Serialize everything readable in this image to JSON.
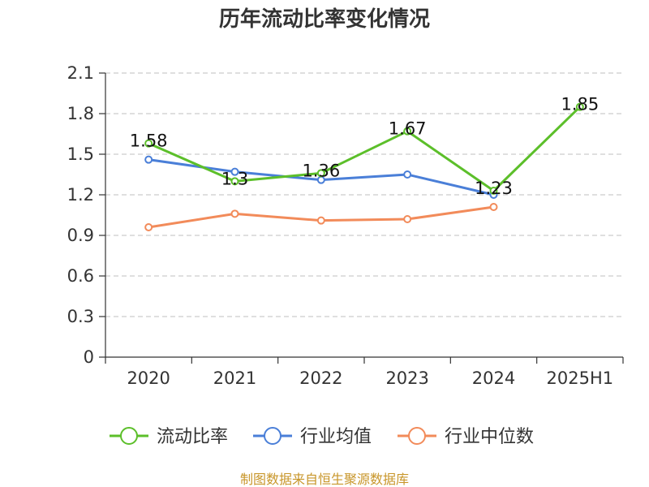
{
  "chart_data": {
    "type": "line",
    "title": "历年流动比率变化情况",
    "categories": [
      "2020",
      "2021",
      "2022",
      "2023",
      "2024",
      "2025H1"
    ],
    "ylim": [
      0,
      2.1
    ],
    "yticks": [
      "0",
      "0.3",
      "0.6",
      "0.9",
      "1.2",
      "1.5",
      "1.8",
      "2.1"
    ],
    "grid": true,
    "legend_position": "bottom",
    "series": [
      {
        "name": "流动比率",
        "color": "#5cbf2a",
        "values": [
          1.58,
          1.3,
          1.36,
          1.67,
          1.23,
          1.85
        ],
        "labels": [
          "1.58",
          "1.3",
          "1.36",
          "1.67",
          "1.23",
          "1.85"
        ]
      },
      {
        "name": "行业均值",
        "color": "#4a7fd8",
        "values": [
          1.46,
          1.37,
          1.31,
          1.35,
          1.2,
          null
        ]
      },
      {
        "name": "行业中位数",
        "color": "#f28b5a",
        "values": [
          0.96,
          1.06,
          1.01,
          1.02,
          1.11,
          null
        ]
      }
    ]
  },
  "source_text": "制图数据来自恒生聚源数据库",
  "source_color": "#c8962a"
}
